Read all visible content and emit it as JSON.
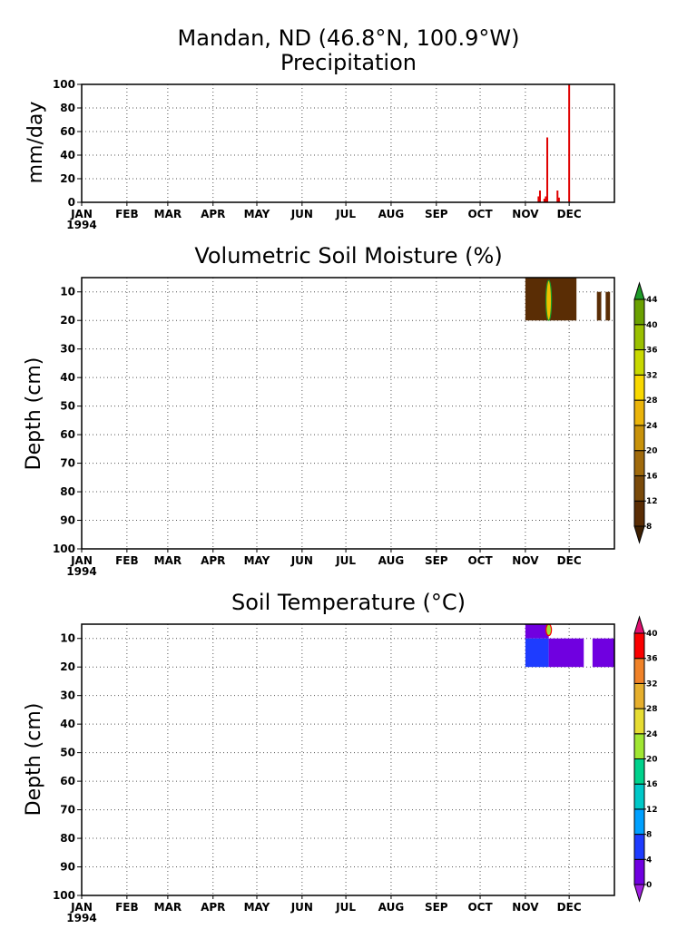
{
  "page": {
    "title_line1": "Mandan, ND  (46.8°N, 100.9°W)"
  },
  "months": [
    "JAN",
    "FEB",
    "MAR",
    "APR",
    "MAY",
    "JUN",
    "JUL",
    "AUG",
    "SEP",
    "OCT",
    "NOV",
    "DEC"
  ],
  "year_label": "1994",
  "chart_data": [
    {
      "type": "bar",
      "title": "Precipitation",
      "xlabel": "",
      "ylabel": "mm/day",
      "ylim": [
        0,
        100
      ],
      "yticks": [
        0,
        20,
        40,
        60,
        80,
        100
      ],
      "xlim": [
        0,
        365
      ],
      "grid": true,
      "color": "#e00000",
      "series": [
        {
          "x": [
            313,
            314,
            317,
            318,
            319,
            326,
            327,
            334
          ],
          "values": [
            5,
            10,
            3,
            5,
            55,
            10,
            4,
            100
          ]
        }
      ]
    },
    {
      "type": "heatmap",
      "title": "Volumetric Soil Moisture (%)",
      "xlabel": "",
      "ylabel": "Depth (cm)",
      "ylim": [
        100,
        5
      ],
      "yticks": [
        10,
        20,
        30,
        40,
        50,
        60,
        70,
        80,
        90,
        100
      ],
      "xlim": [
        0,
        365
      ],
      "grid": true,
      "colorbar": {
        "labels": [
          "8",
          "12",
          "16",
          "20",
          "24",
          "28",
          "32",
          "36",
          "40",
          "44"
        ],
        "colors": [
          "#3d1f02",
          "#5a2d05",
          "#7a4a0a",
          "#a06a0c",
          "#c8920a",
          "#eab40a",
          "#f8d800",
          "#c8d800",
          "#9ac000",
          "#6aa000",
          "#1e9a28"
        ]
      },
      "cells": [
        {
          "x0": 304,
          "x1": 339,
          "d0": 5,
          "d1": 20,
          "v": 8
        },
        {
          "x0": 353,
          "x1": 356,
          "d0": 10,
          "d1": 20,
          "v": 8
        },
        {
          "x0": 359,
          "x1": 362,
          "d0": 10,
          "d1": 20,
          "v": 8
        }
      ],
      "annotations": [
        {
          "x": 320,
          "d0": 6,
          "d1": 20,
          "color": "#f0c000",
          "edge": "#1e9a28"
        }
      ]
    },
    {
      "type": "heatmap",
      "title": "Soil Temperature (°C)",
      "xlabel": "",
      "ylabel": "Depth (cm)",
      "ylim": [
        100,
        5
      ],
      "yticks": [
        10,
        20,
        30,
        40,
        50,
        60,
        70,
        80,
        90,
        100
      ],
      "xlim": [
        0,
        365
      ],
      "grid": true,
      "colorbar": {
        "labels": [
          "0",
          "4",
          "8",
          "12",
          "16",
          "20",
          "24",
          "28",
          "32",
          "36",
          "40"
        ],
        "colors": [
          "#a020e0",
          "#7000e0",
          "#1e3cff",
          "#00a0ff",
          "#00c8c8",
          "#00d28c",
          "#a0e632",
          "#e6dc32",
          "#e6af2d",
          "#f08228",
          "#fa0000",
          "#e01070"
        ]
      },
      "cells": [
        {
          "x0": 304,
          "x1": 320,
          "d0": 5,
          "d1": 10,
          "v": 0
        },
        {
          "x0": 304,
          "x1": 320,
          "d0": 10,
          "d1": 20,
          "v": 5
        },
        {
          "x0": 320,
          "x1": 344,
          "d0": 10,
          "d1": 20,
          "v": 0
        },
        {
          "x0": 350,
          "x1": 365,
          "d0": 10,
          "d1": 20,
          "v": 0
        }
      ],
      "annotations": [
        {
          "x": 320,
          "d0": 5,
          "d1": 9,
          "color": "#a0e632",
          "edge": "#fa0000"
        }
      ]
    }
  ]
}
